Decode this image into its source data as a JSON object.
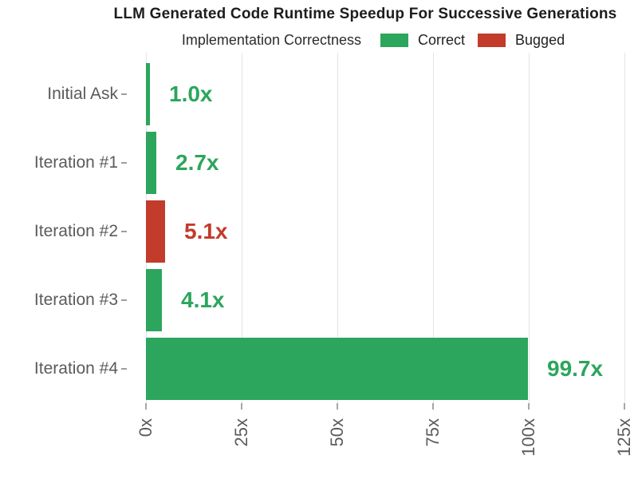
{
  "title": "LLM Generated Code Runtime Speedup For Successive Generations",
  "legend": {
    "title": "Implementation Correctness",
    "items": [
      {
        "label": "Correct",
        "color": "#2BA65C"
      },
      {
        "label": "Bugged",
        "color": "#C23B2B"
      }
    ]
  },
  "chart_data": {
    "type": "bar",
    "orientation": "horizontal",
    "title": "LLM Generated Code Runtime Speedup For Successive Generations",
    "legend_title": "Implementation Correctness",
    "legend_position": "top",
    "categories": [
      "Initial Ask",
      "Iteration #1",
      "Iteration #2",
      "Iteration #3",
      "Iteration #4"
    ],
    "values": [
      1.0,
      2.7,
      5.1,
      4.1,
      99.7
    ],
    "labels": [
      "1.0x",
      "2.7x",
      "5.1x",
      "4.1x",
      "99.7x"
    ],
    "status": [
      "Correct",
      "Correct",
      "Bugged",
      "Correct",
      "Correct"
    ],
    "colors": {
      "Correct": "#2BA65C",
      "Bugged": "#C23B2B"
    },
    "xlabel": "",
    "ylabel": "",
    "x_ticks": [
      "0x",
      "25x",
      "50x",
      "75x",
      "100x",
      "125x"
    ],
    "x_tick_values": [
      0,
      25,
      50,
      75,
      100,
      125
    ],
    "xlim": [
      0,
      125
    ],
    "grid": "vertical-major-only"
  }
}
